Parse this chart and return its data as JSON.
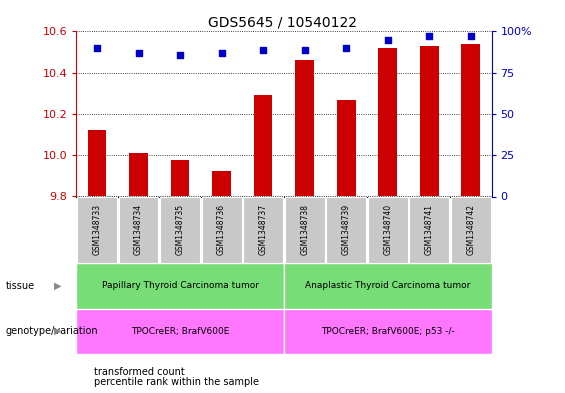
{
  "title": "GDS5645 / 10540122",
  "samples": [
    "GSM1348733",
    "GSM1348734",
    "GSM1348735",
    "GSM1348736",
    "GSM1348737",
    "GSM1348738",
    "GSM1348739",
    "GSM1348740",
    "GSM1348741",
    "GSM1348742"
  ],
  "transformed_count": [
    10.12,
    10.01,
    9.975,
    9.925,
    10.29,
    10.46,
    10.27,
    10.52,
    10.53,
    10.54
  ],
  "percentile_rank": [
    90,
    87,
    86,
    87,
    89,
    89,
    90,
    95,
    97,
    97
  ],
  "ylim_left": [
    9.8,
    10.6
  ],
  "ylim_right": [
    0,
    100
  ],
  "yticks_left": [
    9.8,
    10.0,
    10.2,
    10.4,
    10.6
  ],
  "yticks_right": [
    0,
    25,
    50,
    75,
    100
  ],
  "ytick_labels_right": [
    "0",
    "25",
    "50",
    "75",
    "100%"
  ],
  "tissue_labels": [
    {
      "text": "Papillary Thyroid Carcinoma tumor",
      "start": 0,
      "end": 5,
      "color": "#77DD77"
    },
    {
      "text": "Anaplastic Thyroid Carcinoma tumor",
      "start": 5,
      "end": 10,
      "color": "#77DD77"
    }
  ],
  "genotype_labels": [
    {
      "text": "TPOCreER; BrafV600E",
      "start": 0,
      "end": 5,
      "color": "#FF77FF"
    },
    {
      "text": "TPOCreER; BrafV600E; p53 -/-",
      "start": 5,
      "end": 10,
      "color": "#FF77FF"
    }
  ],
  "bar_color": "#CC0000",
  "dot_color": "#0000CC",
  "grid_color": "#000000",
  "axis_left_color": "#CC0000",
  "axis_right_color": "#0000CC",
  "tick_bg_color": "#C8C8C8",
  "legend_items": [
    {
      "color": "#CC0000",
      "label": "transformed count"
    },
    {
      "color": "#0000CC",
      "label": "percentile rank within the sample"
    }
  ]
}
